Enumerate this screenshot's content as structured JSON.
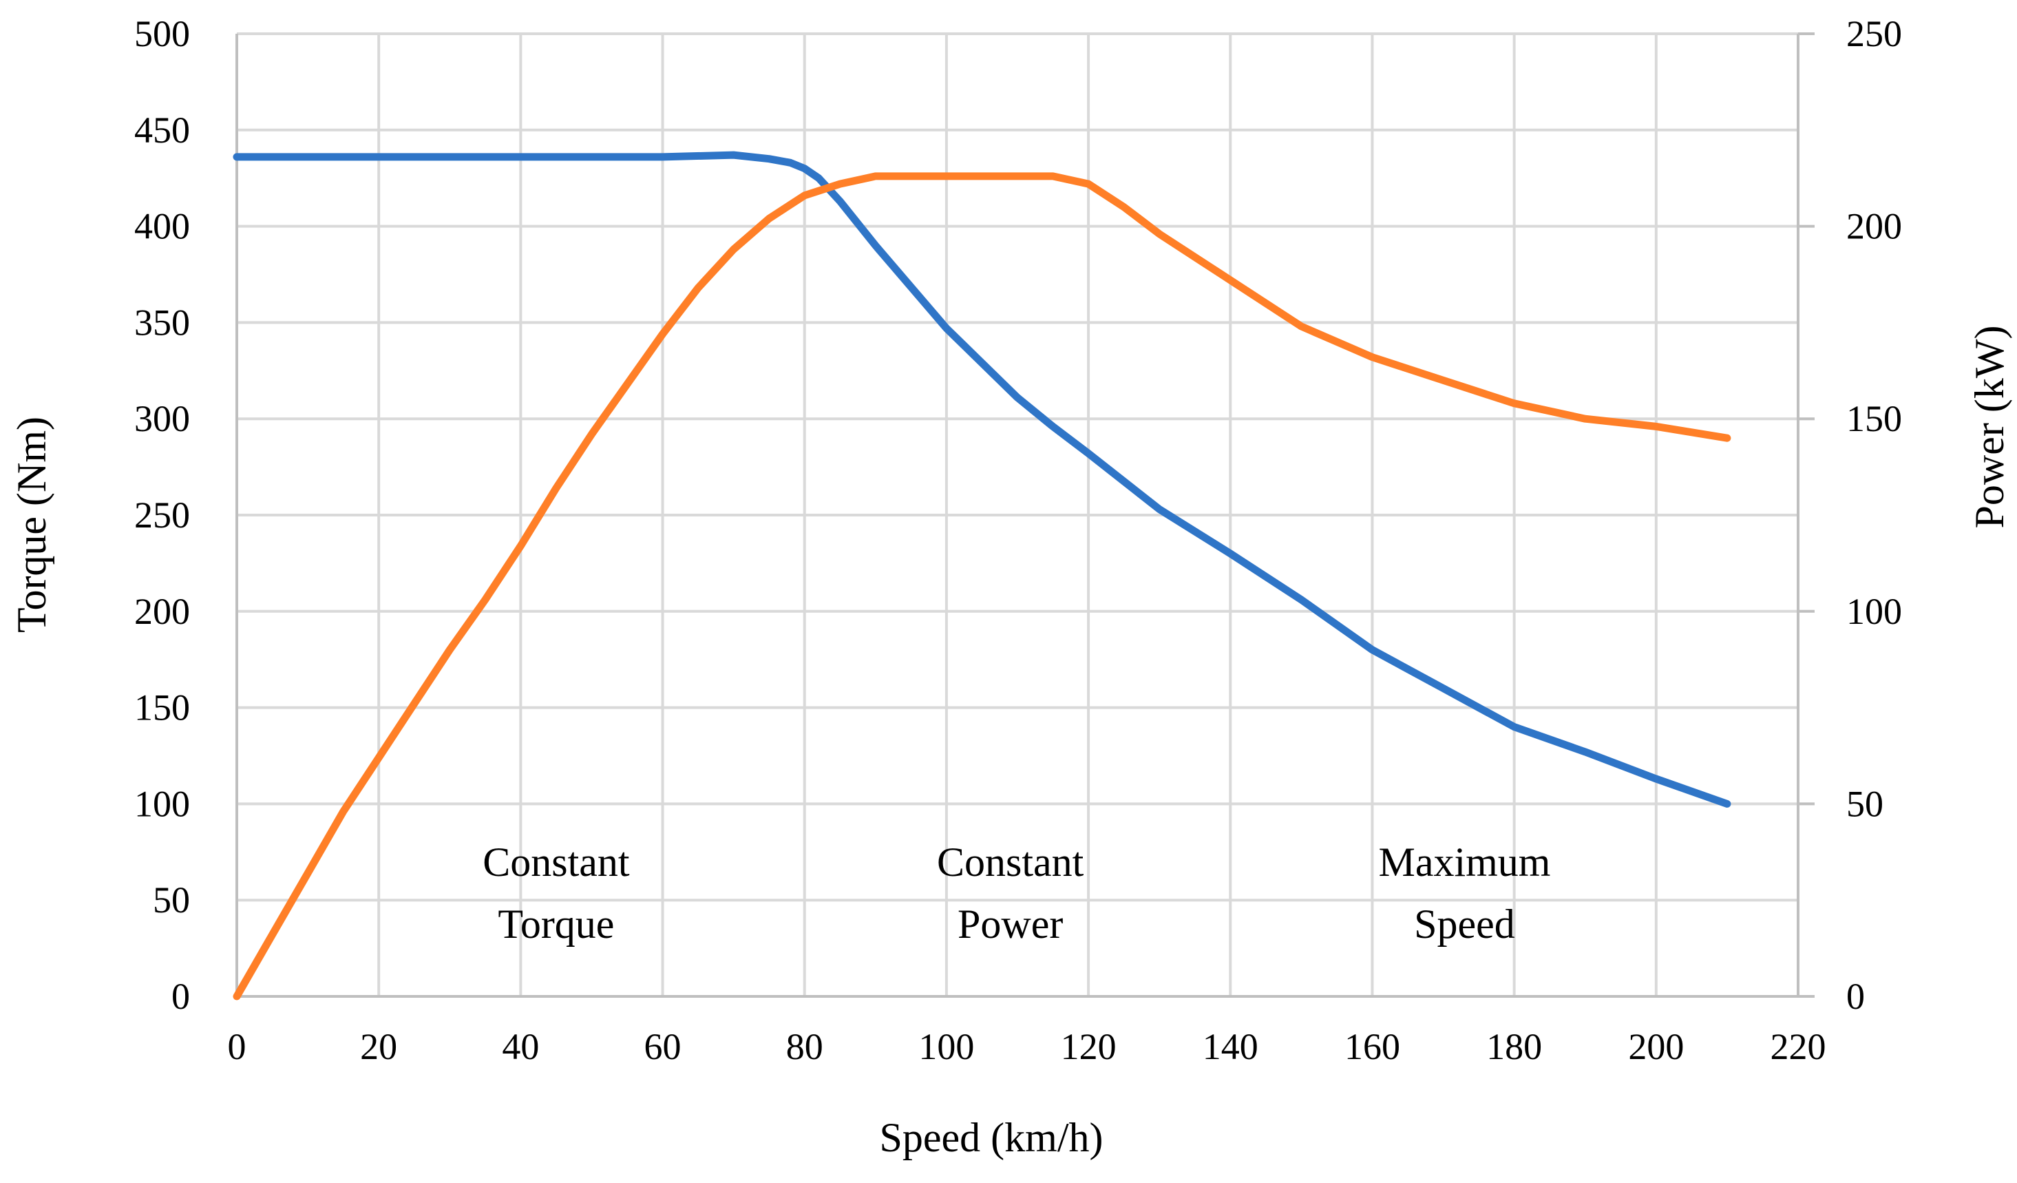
{
  "chart_data": {
    "type": "line",
    "title": "",
    "xlabel": "Speed (km/h)",
    "ylabel_left": "Torque (Nm)",
    "ylabel_right": "Power (kW)",
    "xlim": [
      0,
      220
    ],
    "ylim_left": [
      0,
      500
    ],
    "ylim_right": [
      0,
      250
    ],
    "x_ticks": [
      "0",
      "20",
      "40",
      "60",
      "80",
      "100",
      "120",
      "140",
      "160",
      "180",
      "200",
      "220"
    ],
    "y_left_ticks": [
      "0",
      "50",
      "100",
      "150",
      "200",
      "250",
      "300",
      "350",
      "400",
      "450",
      "500"
    ],
    "y_right_ticks": [
      "0",
      "50",
      "100",
      "150",
      "200",
      "250"
    ],
    "grid": true,
    "colors": {
      "torque": "#2f75c7",
      "power": "#ff7f27",
      "grid": "#d9d9d9",
      "axis": "#bfbfbf"
    },
    "series": [
      {
        "axis": "left",
        "color": "#2f75c7",
        "x": [
          0,
          10,
          20,
          30,
          40,
          50,
          60,
          70,
          75,
          78,
          80,
          82,
          85,
          90,
          100,
          110,
          115,
          120,
          130,
          140,
          150,
          160,
          170,
          180,
          190,
          200,
          210
        ],
        "y": [
          436,
          436,
          436,
          436,
          436,
          436,
          436,
          437,
          435,
          433,
          430,
          425,
          413,
          390,
          347,
          311,
          296,
          282,
          253,
          230,
          206,
          180,
          160,
          140,
          127,
          113,
          100
        ]
      },
      {
        "axis": "right",
        "color": "#ff7f27",
        "x": [
          0,
          5,
          10,
          15,
          20,
          25,
          30,
          35,
          40,
          45,
          50,
          55,
          60,
          65,
          70,
          75,
          80,
          85,
          90,
          95,
          100,
          105,
          110,
          115,
          120,
          125,
          130,
          140,
          150,
          160,
          170,
          180,
          190,
          200,
          210
        ],
        "y": [
          0,
          16,
          32,
          48,
          62,
          76,
          90,
          103,
          117,
          132,
          146,
          159,
          172,
          184,
          194,
          202,
          208,
          211,
          213,
          213,
          213,
          213,
          213,
          213,
          211,
          205,
          198,
          186,
          174,
          166,
          160,
          154,
          150,
          148,
          145
        ]
      }
    ],
    "annotations": [
      {
        "lines": [
          "Constant",
          "Torque"
        ],
        "x": 45
      },
      {
        "lines": [
          "Constant",
          "Power"
        ],
        "x": 109
      },
      {
        "lines": [
          "Maximum",
          "Speed"
        ],
        "x": 173
      }
    ]
  }
}
